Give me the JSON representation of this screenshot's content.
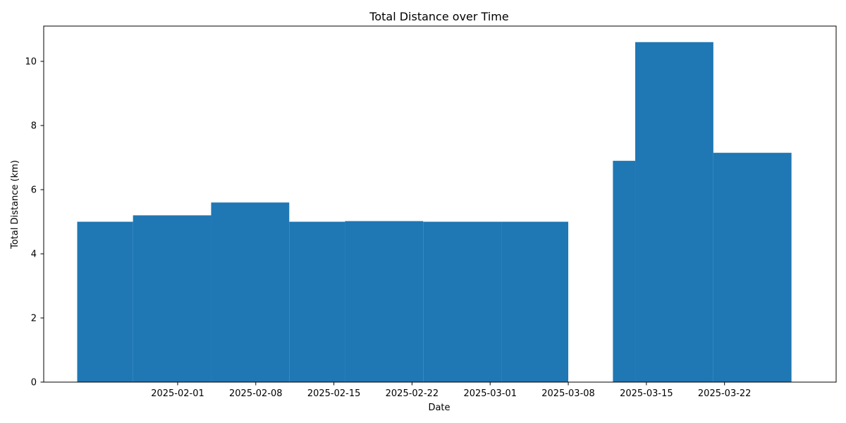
{
  "chart_data": {
    "type": "bar",
    "title": "Total Distance over Time",
    "xlabel": "Date",
    "ylabel": "Total Distance (km)",
    "bar_color": "#1f77b4",
    "xlim": [
      "2025-01-20",
      "2025-04-01"
    ],
    "ylim": [
      0,
      11.1
    ],
    "x_ticks": [
      "2025-02-01",
      "2025-02-08",
      "2025-02-15",
      "2025-02-22",
      "2025-03-01",
      "2025-03-08",
      "2025-03-15",
      "2025-03-22"
    ],
    "y_ticks": [
      0,
      2,
      4,
      6,
      8,
      10
    ],
    "series": [
      {
        "bars": [
          {
            "start": "2025-01-23",
            "end": "2025-01-28",
            "value": 5.0
          },
          {
            "start": "2025-01-28",
            "end": "2025-02-04",
            "value": 5.2
          },
          {
            "start": "2025-02-04",
            "end": "2025-02-11",
            "value": 5.6
          },
          {
            "start": "2025-02-11",
            "end": "2025-02-16",
            "value": 5.0
          },
          {
            "start": "2025-02-16",
            "end": "2025-02-23",
            "value": 5.02
          },
          {
            "start": "2025-02-23",
            "end": "2025-03-02",
            "value": 5.0
          },
          {
            "start": "2025-03-02",
            "end": "2025-03-08",
            "value": 5.0
          },
          {
            "start": "2025-03-12",
            "end": "2025-03-14",
            "value": 6.9
          },
          {
            "start": "2025-03-14",
            "end": "2025-03-21",
            "value": 10.6
          },
          {
            "start": "2025-03-21",
            "end": "2025-03-28",
            "value": 7.15
          }
        ]
      }
    ]
  }
}
